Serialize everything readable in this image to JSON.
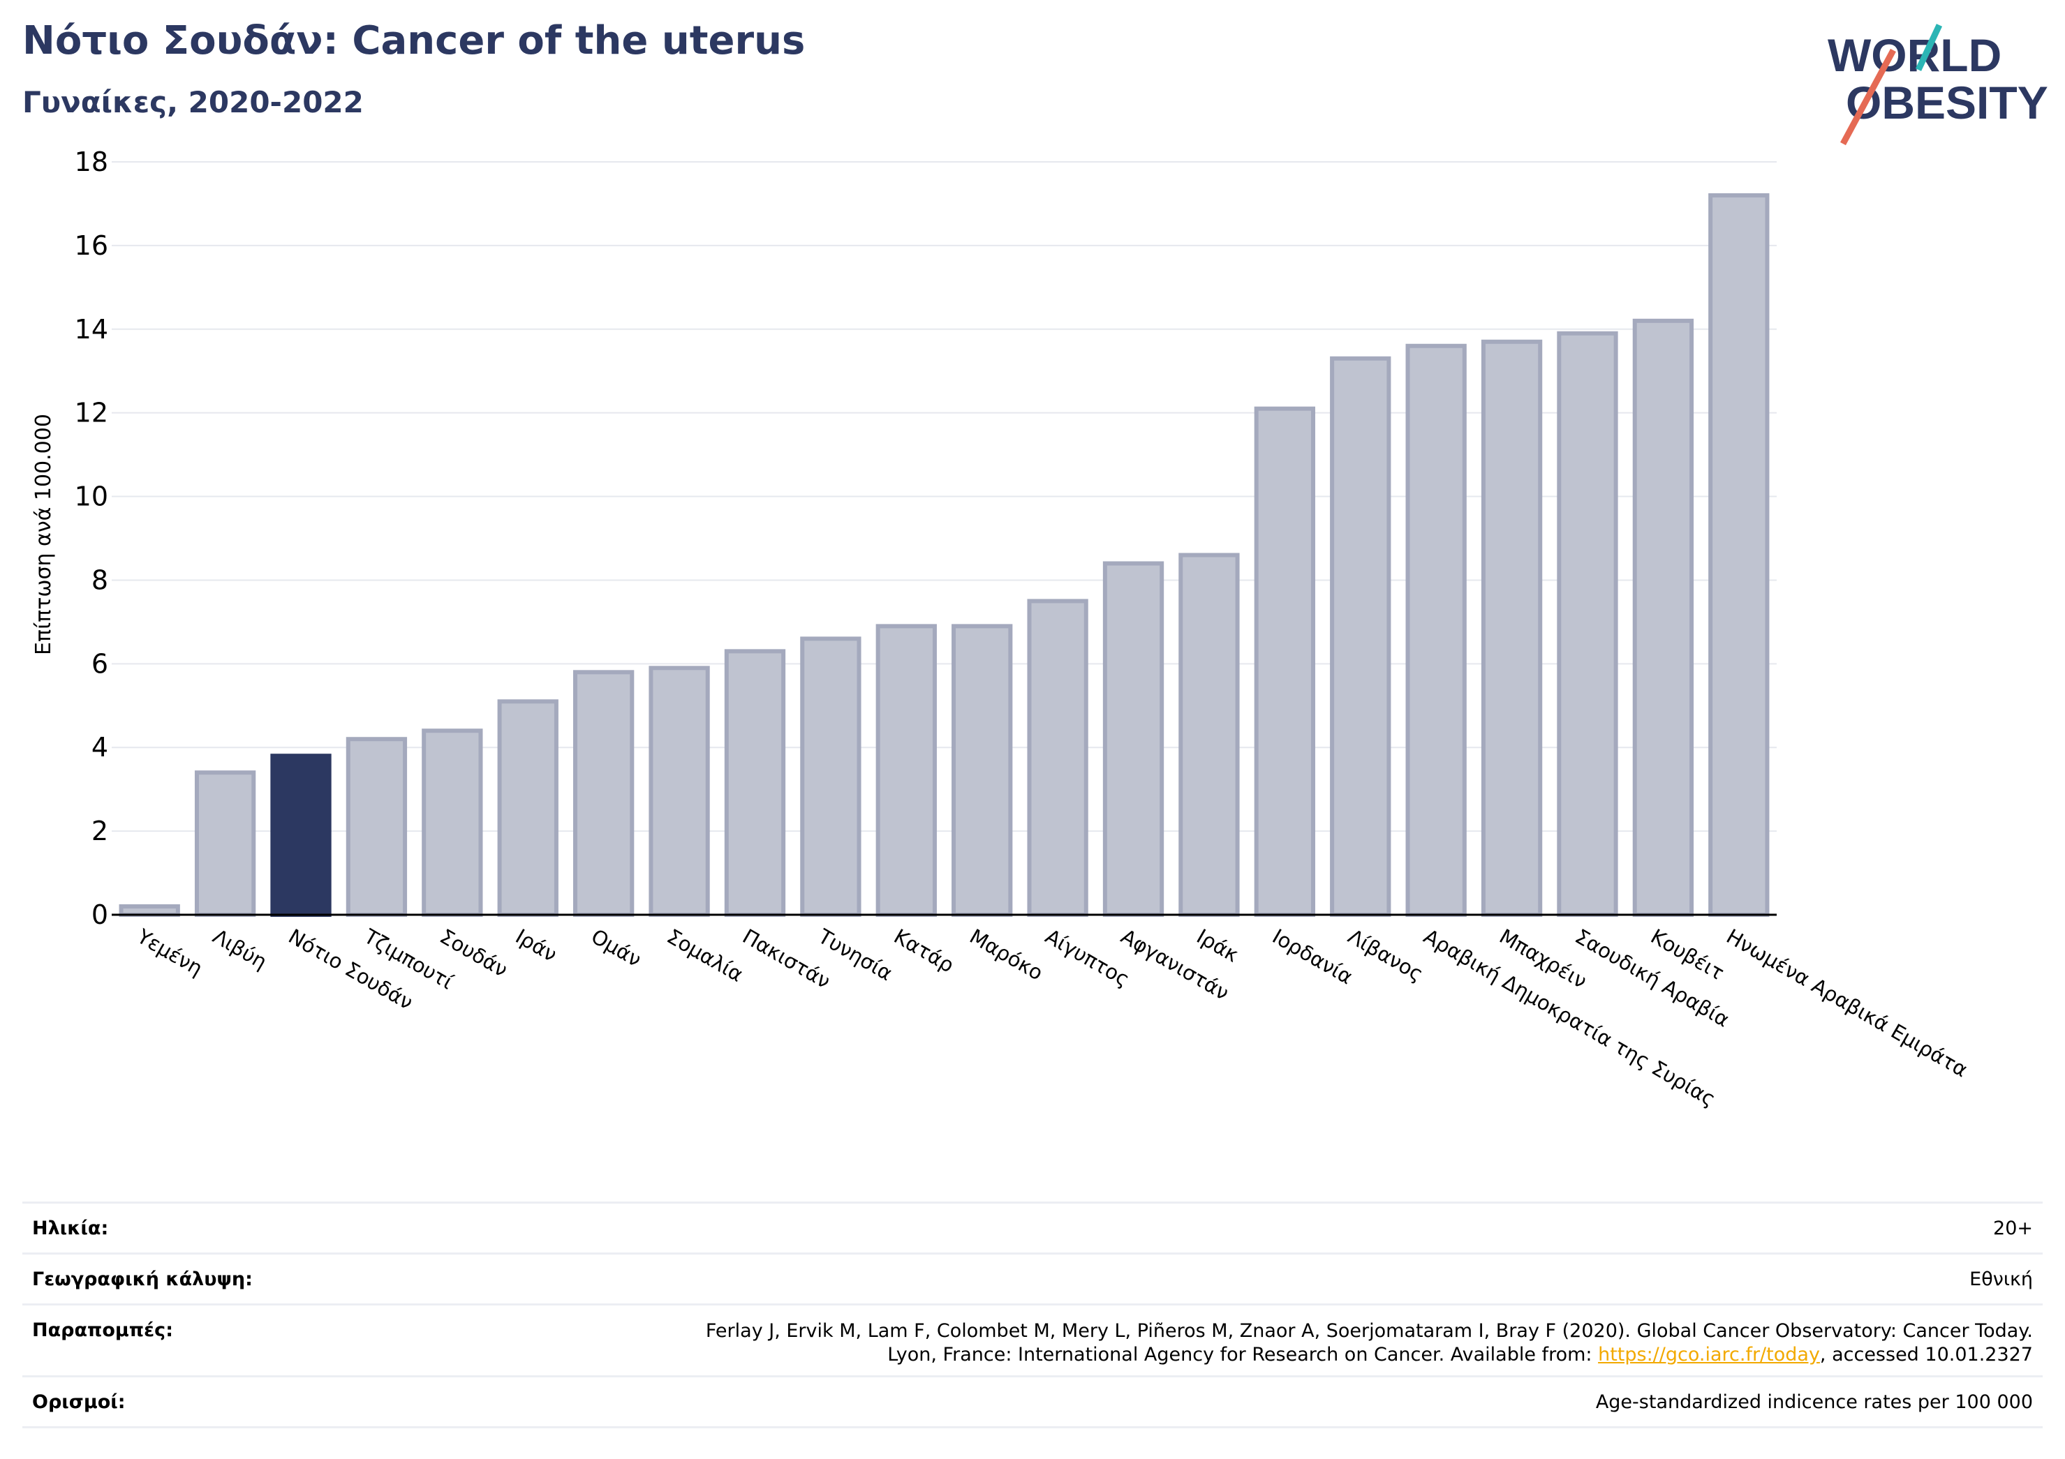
{
  "header": {
    "title": "Νότιο Σουδάν: Cancer of the uterus",
    "subtitle": "Γυναίκες, 2020-2022"
  },
  "logo": {
    "line1": "WORLD",
    "line2": "OBESITY",
    "colors": {
      "text": "#2c3861",
      "slash_red": "#e56a54",
      "slash_teal": "#2bb5b5"
    }
  },
  "colors": {
    "bar": "#bfc3d0",
    "bar_stroke": "#a4a9bd",
    "highlight": "#2c3861",
    "grid": "#e6e8ee",
    "axis": "#000000"
  },
  "chart_data": {
    "type": "bar",
    "title": "Νότιο Σουδάν: Cancer of the uterus",
    "subtitle": "Γυναίκες, 2020-2022",
    "xlabel": "",
    "ylabel": "Επίπτωση ανά 100.000",
    "ylim": [
      0,
      18
    ],
    "yticks": [
      0,
      2,
      4,
      6,
      8,
      10,
      12,
      14,
      16,
      18
    ],
    "grid": true,
    "highlight": "Νότιο Σουδάν",
    "categories": [
      "Υεμένη",
      "Λιβύη",
      "Νότιο Σουδάν",
      "Τζιμπουτί",
      "Σουδάν",
      "Ιράν",
      "Ομάν",
      "Σομαλία",
      "Πακιστάν",
      "Τυνησία",
      "Κατάρ",
      "Μαρόκο",
      "Αίγυπτος",
      "Αφγανιστάν",
      "Ιράκ",
      "Ιορδανία",
      "Λίβανος",
      "Αραβική Δημοκρατία της Συρίας",
      "Μπαχρέιν",
      "Σαουδική Αραβία",
      "Κουβέιτ",
      "Ηνωμένα Αραβικά Εμιράτα"
    ],
    "values": [
      0.2,
      3.4,
      3.8,
      4.2,
      4.4,
      5.1,
      5.8,
      5.9,
      6.3,
      6.6,
      6.9,
      6.9,
      7.5,
      8.4,
      8.6,
      12.1,
      13.3,
      13.6,
      13.7,
      13.9,
      14.2,
      17.2
    ]
  },
  "info": {
    "age_label": "Ηλικία:",
    "age_value": "20+",
    "coverage_label": "Γεωγραφική κάλυψη:",
    "coverage_value": "Εθνική",
    "refs_label": "Παραπομπές:",
    "refs_line1": "Ferlay J, Ervik M, Lam F, Colombet M, Mery L, Piñeros M, Znaor A, Soerjomataram I, Bray F (2020). Global Cancer Observatory: Cancer Today.",
    "refs_line2_pre": "Lyon, France: International Agency for Research on Cancer. Available from: ",
    "refs_link": "https://gco.iarc.fr/today",
    "refs_line2_post": ", accessed 10.01.2327",
    "defs_label": "Ορισμοί:",
    "defs_value": "Age-standardized indicence rates per 100 000"
  }
}
